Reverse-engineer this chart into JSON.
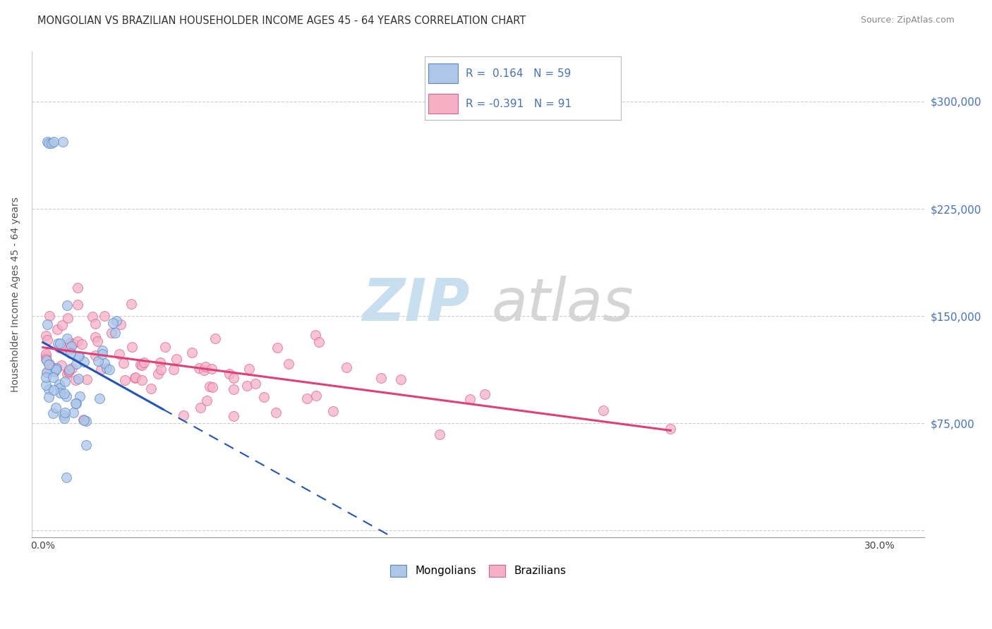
{
  "title": "MONGOLIAN VS BRAZILIAN HOUSEHOLDER INCOME AGES 45 - 64 YEARS CORRELATION CHART",
  "source": "Source: ZipAtlas.com",
  "ylabel": "Householder Income Ages 45 - 64 years",
  "mongolian_R": 0.164,
  "mongolian_N": 59,
  "brazilian_R": -0.391,
  "brazilian_N": 91,
  "mongolian_fill": "#aec6e8",
  "mongolian_edge": "#5588cc",
  "mongolian_line": "#2255bb",
  "brazilian_fill": "#f5b0c5",
  "brazilian_edge": "#e06090",
  "brazilian_line": "#e0407a",
  "bg_color": "#ffffff",
  "grid_color": "#cccccc",
  "title_color": "#333333",
  "source_color": "#888888",
  "ylabel_color": "#555555",
  "tick_color": "#4472c4",
  "xlim": [
    -0.004,
    0.316
  ],
  "ylim": [
    -5000,
    335000
  ],
  "xticks": [
    0.0,
    0.05,
    0.1,
    0.15,
    0.2,
    0.25,
    0.3
  ],
  "yticks": [
    0,
    75000,
    150000,
    225000,
    300000
  ],
  "right_ytick_labels": [
    "$75,000",
    "$150,000",
    "$225,000",
    "$300,000"
  ],
  "right_ytick_vals": [
    75000,
    150000,
    225000,
    300000
  ],
  "watermark_zip_color": "#c8dff0",
  "watermark_atlas_color": "#d5d5d5",
  "legend_box_edge": "#bbbbbb",
  "legend_text_color": "#4472c4",
  "marker_size": 100,
  "marker_alpha": 0.75,
  "regression_linewidth": 2.2,
  "dashed_linewidth": 1.5
}
